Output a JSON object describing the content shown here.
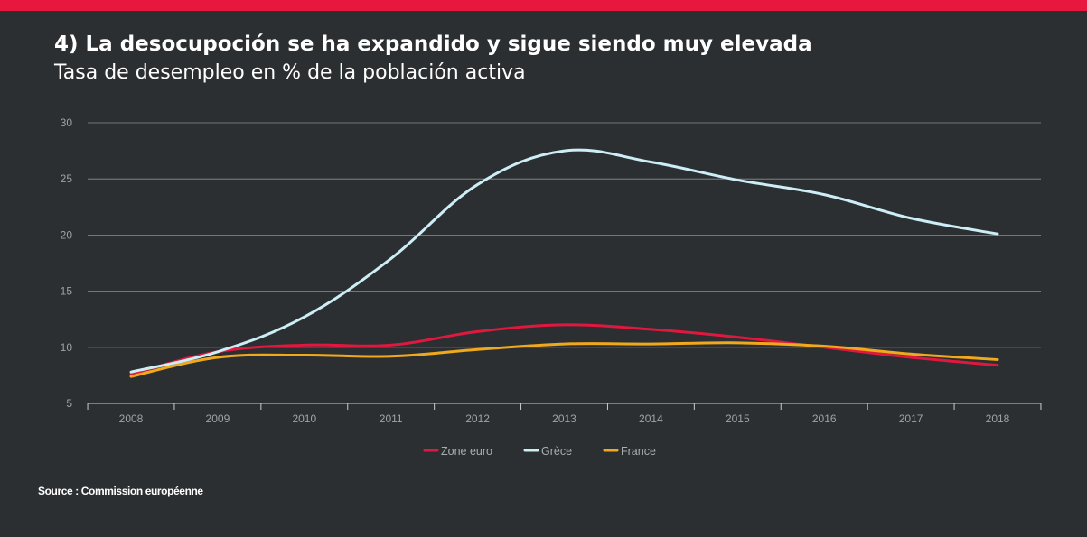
{
  "header": {
    "title": "4) La desocupoción se ha expandido y sigue siendo muy elevada",
    "subtitle": "Tasa de desempleo en % de la población activa"
  },
  "source": "Source : Commission européenne",
  "colors": {
    "background": "#2b2f31",
    "accent": "#e8173e",
    "grid": "#8a8f92"
  },
  "chart_data": {
    "type": "line",
    "title": "4) La desocupoción se ha expandido y sigue siendo muy elevada",
    "subtitle": "Tasa de desempleo en % de la población activa",
    "xlabel": "",
    "ylabel": "",
    "ylim": [
      5,
      30
    ],
    "yticks": [
      5,
      10,
      15,
      20,
      25,
      30
    ],
    "grid": true,
    "legend": "bottom-center",
    "categories": [
      "2008",
      "2009",
      "2010",
      "2011",
      "2012",
      "2013",
      "2014",
      "2015",
      "2016",
      "2017",
      "2018"
    ],
    "series": [
      {
        "name": "Zone euro",
        "color": "#e0183f",
        "values": [
          7.6,
          9.6,
          10.2,
          10.2,
          11.4,
          12.0,
          11.6,
          10.9,
          10.0,
          9.1,
          8.4
        ]
      },
      {
        "name": "Grèce",
        "color": "#cdeef6",
        "values": [
          7.8,
          9.6,
          12.7,
          17.9,
          24.5,
          27.5,
          26.5,
          24.9,
          23.6,
          21.5,
          20.1
        ]
      },
      {
        "name": "France",
        "color": "#f0a81c",
        "values": [
          7.4,
          9.1,
          9.3,
          9.2,
          9.8,
          10.3,
          10.3,
          10.4,
          10.1,
          9.4,
          8.9
        ]
      }
    ]
  }
}
